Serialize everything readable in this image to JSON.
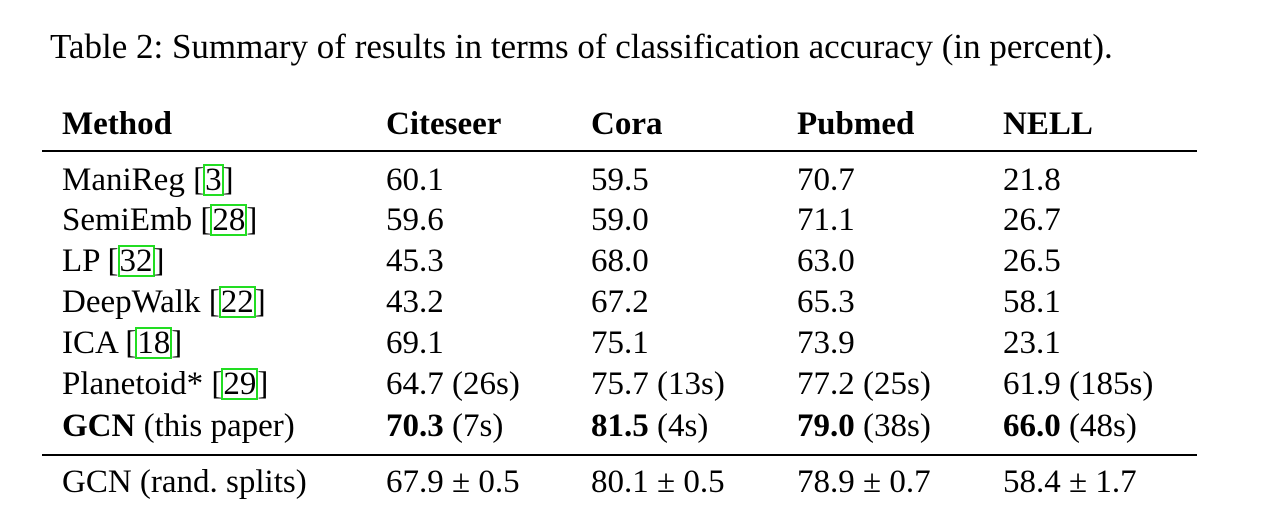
{
  "caption": "Table 2: Summary of results in terms of classification accuracy (in percent).",
  "headers": [
    "Method",
    "Citeseer",
    "Cora",
    "Pubmed",
    "NELL"
  ],
  "rows": [
    {
      "method": "ManiReg",
      "ref": "3",
      "values": [
        "60.1",
        "59.5",
        "70.7",
        "21.8"
      ]
    },
    {
      "method": "SemiEmb",
      "ref": "28",
      "values": [
        "59.6",
        "59.0",
        "71.1",
        "26.7"
      ]
    },
    {
      "method": "LP",
      "ref": "32",
      "values": [
        "45.3",
        "68.0",
        "63.0",
        "26.5"
      ]
    },
    {
      "method": "DeepWalk",
      "ref": "22",
      "values": [
        "43.2",
        "67.2",
        "65.3",
        "58.1"
      ]
    },
    {
      "method": "ICA",
      "ref": "18",
      "values": [
        "69.1",
        "75.1",
        "73.9",
        "23.1"
      ]
    },
    {
      "method": "Planetoid*",
      "ref": "29",
      "values": [
        "64.7 (26s)",
        "75.7 (13s)",
        "77.2 (25s)",
        "61.9 (185s)"
      ]
    }
  ],
  "gcn_row": {
    "method_bold": "GCN",
    "method_rest": " (this paper)",
    "values": [
      {
        "bold": "70.3",
        "rest": " (7s)"
      },
      {
        "bold": "81.5",
        "rest": " (4s)"
      },
      {
        "bold": "79.0",
        "rest": " (38s)"
      },
      {
        "bold": "66.0",
        "rest": " (48s)"
      }
    ]
  },
  "rand_row": {
    "method": "GCN (rand. splits)",
    "values": [
      "67.9 ± 0.5",
      "80.1 ± 0.5",
      "78.9 ± 0.7",
      "58.4 ± 1.7"
    ]
  }
}
